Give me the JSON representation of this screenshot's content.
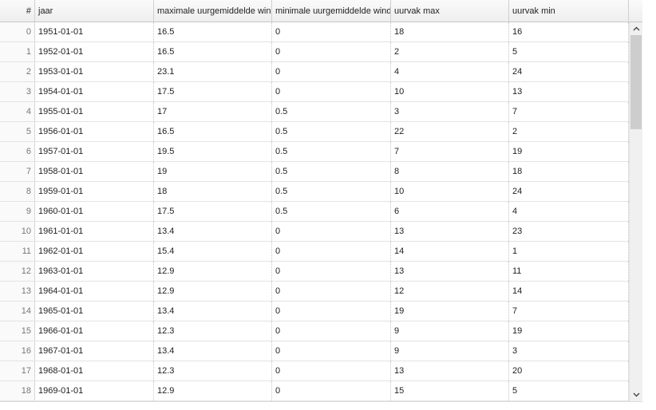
{
  "table": {
    "columns": [
      {
        "label": "#"
      },
      {
        "label": "jaar"
      },
      {
        "label": "maximale uurgemiddelde windsnelheid"
      },
      {
        "label": "minimale uurgemiddelde windsnelheid"
      },
      {
        "label": "uurvak max"
      },
      {
        "label": "uurvak min"
      }
    ],
    "rows": [
      [
        "0",
        "1951-01-01",
        "16.5",
        "0",
        "18",
        "16"
      ],
      [
        "1",
        "1952-01-01",
        "16.5",
        "0",
        "2",
        "5"
      ],
      [
        "2",
        "1953-01-01",
        "23.1",
        "0",
        "4",
        "24"
      ],
      [
        "3",
        "1954-01-01",
        "17.5",
        "0",
        "10",
        "13"
      ],
      [
        "4",
        "1955-01-01",
        "17",
        "0.5",
        "3",
        "7"
      ],
      [
        "5",
        "1956-01-01",
        "16.5",
        "0.5",
        "22",
        "2"
      ],
      [
        "6",
        "1957-01-01",
        "19.5",
        "0.5",
        "7",
        "19"
      ],
      [
        "7",
        "1958-01-01",
        "19",
        "0.5",
        "8",
        "18"
      ],
      [
        "8",
        "1959-01-01",
        "18",
        "0.5",
        "10",
        "24"
      ],
      [
        "9",
        "1960-01-01",
        "17.5",
        "0.5",
        "6",
        "4"
      ],
      [
        "10",
        "1961-01-01",
        "13.4",
        "0",
        "13",
        "23"
      ],
      [
        "11",
        "1962-01-01",
        "15.4",
        "0",
        "14",
        "1"
      ],
      [
        "12",
        "1963-01-01",
        "12.9",
        "0",
        "13",
        "11"
      ],
      [
        "13",
        "1964-01-01",
        "12.9",
        "0",
        "12",
        "14"
      ],
      [
        "14",
        "1965-01-01",
        "13.4",
        "0",
        "19",
        "7"
      ],
      [
        "15",
        "1966-01-01",
        "12.3",
        "0",
        "9",
        "19"
      ],
      [
        "16",
        "1967-01-01",
        "13.4",
        "0",
        "9",
        "3"
      ],
      [
        "17",
        "1968-01-01",
        "12.3",
        "0",
        "13",
        "20"
      ],
      [
        "18",
        "1969-01-01",
        "12.9",
        "0",
        "15",
        "5"
      ]
    ]
  },
  "scrollbar": {
    "up_icon": "chevron-up-icon",
    "down_icon": "chevron-down-icon"
  }
}
